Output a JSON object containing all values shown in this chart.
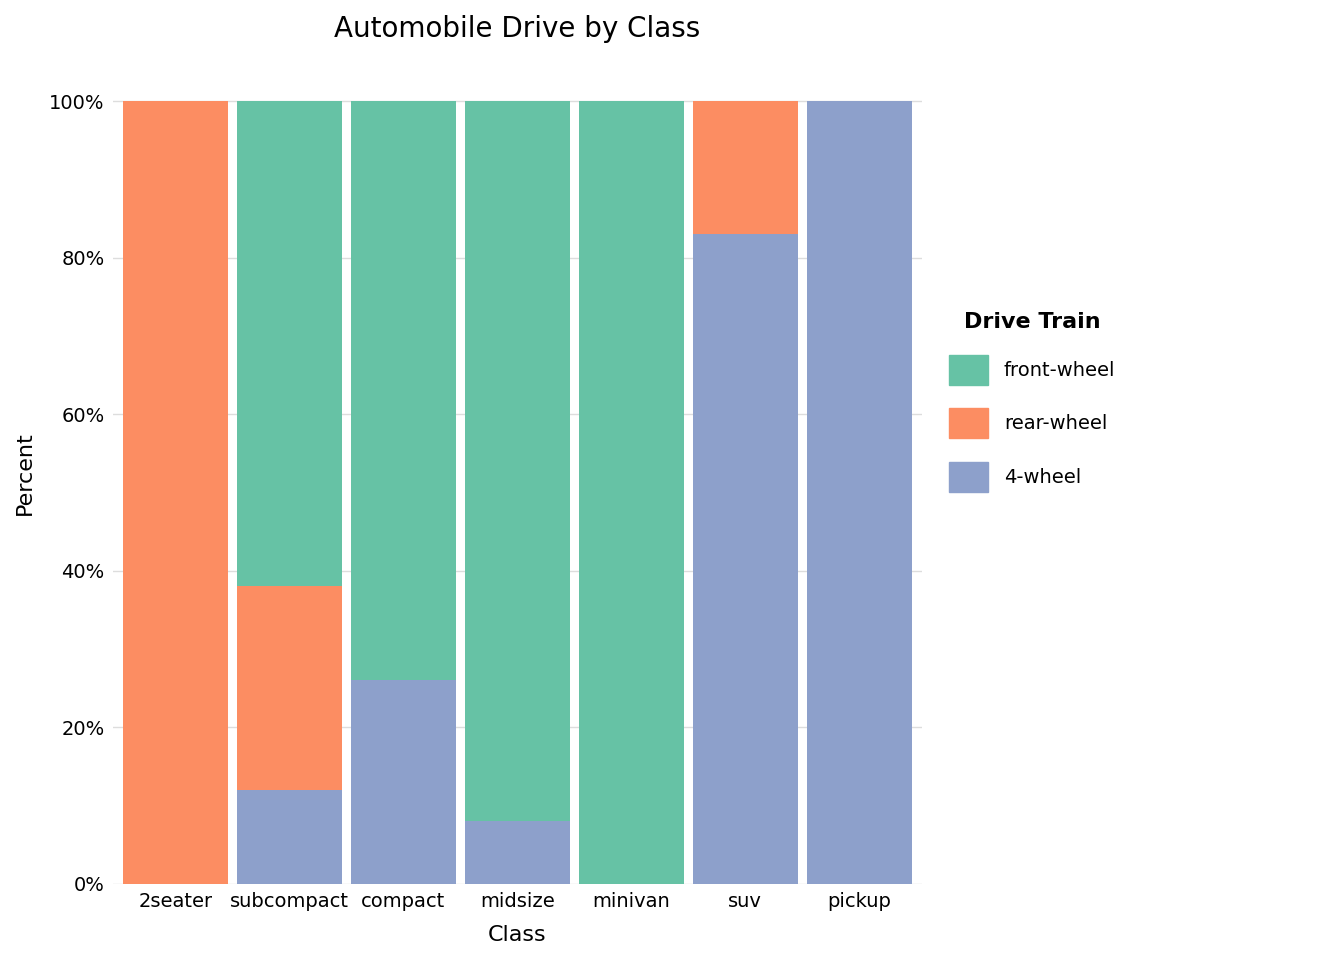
{
  "categories": [
    "2seater",
    "subcompact",
    "compact",
    "midsize",
    "minivan",
    "suv",
    "pickup"
  ],
  "front_wheel": [
    0.0,
    0.62,
    0.74,
    0.92,
    1.0,
    0.0,
    0.0
  ],
  "rear_wheel": [
    1.0,
    0.26,
    0.0,
    0.0,
    0.0,
    0.17,
    0.0
  ],
  "four_wheel": [
    0.0,
    0.12,
    0.26,
    0.08,
    0.0,
    0.83,
    1.0
  ],
  "color_front": "#66C2A5",
  "color_rear": "#FC8D62",
  "color_four": "#8DA0CB",
  "title": "Automobile Drive by Class",
  "xlabel": "Class",
  "ylabel": "Percent",
  "legend_title": "Drive Train",
  "legend_labels": [
    "front-wheel",
    "rear-wheel",
    "4-wheel"
  ],
  "background_color": "#FFFFFF",
  "plot_bg_color": "#FFFFFF",
  "grid_color": "#DDDDDD",
  "bar_width": 0.92,
  "yticks": [
    0,
    0.2,
    0.4,
    0.6,
    0.8,
    1.0
  ],
  "ytick_labels": [
    "0%",
    "20%",
    "40%",
    "60%",
    "80%",
    "100%"
  ]
}
